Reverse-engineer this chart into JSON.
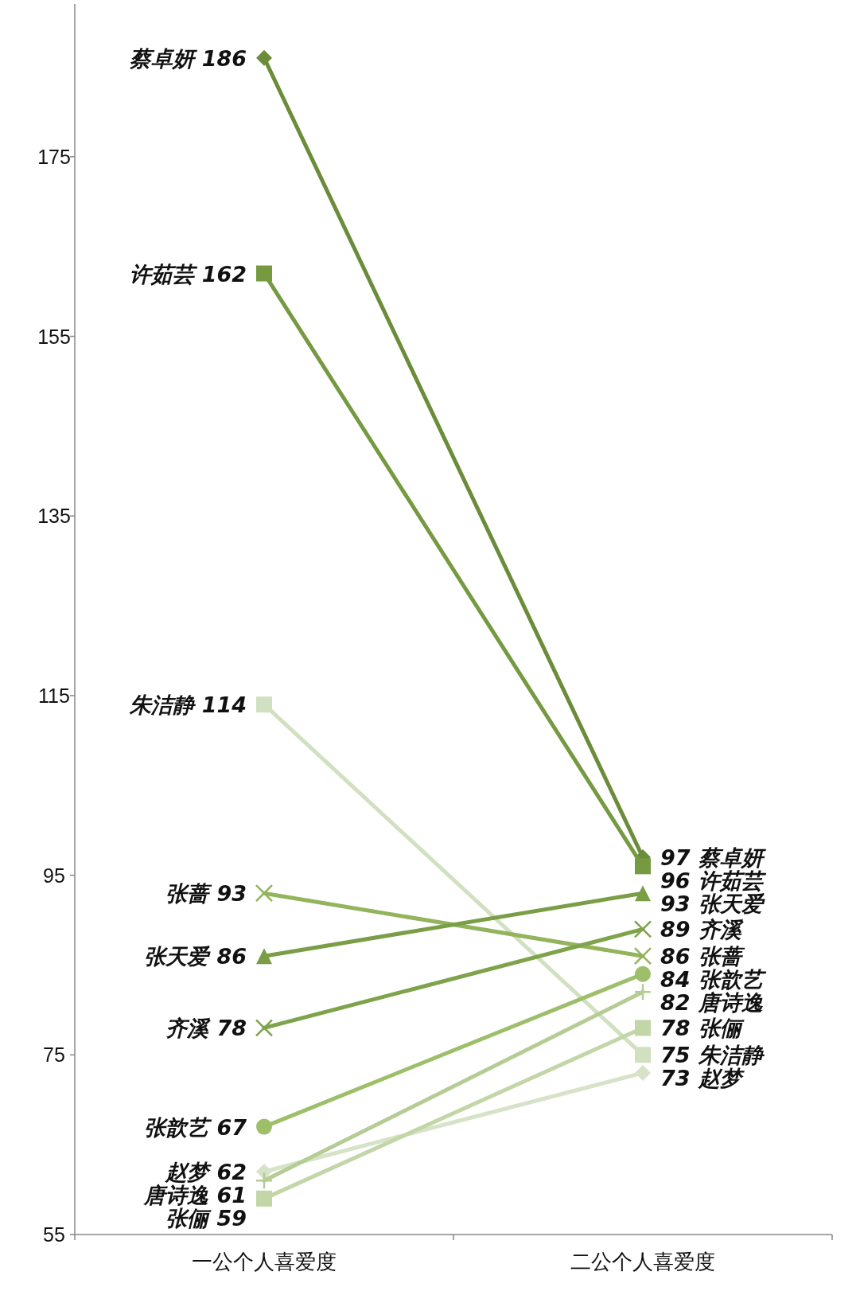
{
  "chart_data": {
    "type": "line",
    "categories": [
      "一公个人喜爱度",
      "二公个人喜爱度"
    ],
    "ylim": [
      55,
      192
    ],
    "yticks": [
      55,
      75,
      95,
      115,
      135,
      155,
      175
    ],
    "data_labels": true,
    "series": [
      {
        "name": "蔡卓妍",
        "color": "#6b8c3a",
        "marker": "diamond",
        "values": [
          186,
          97
        ]
      },
      {
        "name": "许茹芸",
        "color": "#769a42",
        "marker": "square",
        "values": [
          162,
          96
        ]
      },
      {
        "name": "朱洁静",
        "color": "#d2e0c2",
        "marker": "square",
        "values": [
          114,
          75
        ]
      },
      {
        "name": "张蔷",
        "color": "#93b45c",
        "marker": "cross",
        "values": [
          93,
          86
        ]
      },
      {
        "name": "张天爱",
        "color": "#7a9e45",
        "marker": "triangle",
        "values": [
          86,
          93
        ]
      },
      {
        "name": "齐溪",
        "color": "#7fa34b",
        "marker": "cross",
        "values": [
          78,
          89
        ]
      },
      {
        "name": "张歆艺",
        "color": "#9dbf6a",
        "marker": "circle",
        "values": [
          67,
          84
        ]
      },
      {
        "name": "赵梦",
        "color": "#d6e3c8",
        "marker": "diamond",
        "values": [
          62,
          73
        ]
      },
      {
        "name": "唐诗逸",
        "color": "#b5cc94",
        "marker": "plus",
        "values": [
          61,
          82
        ]
      },
      {
        "name": "张俪",
        "color": "#c3d6a8",
        "marker": "square",
        "values": [
          59,
          78
        ]
      }
    ]
  }
}
